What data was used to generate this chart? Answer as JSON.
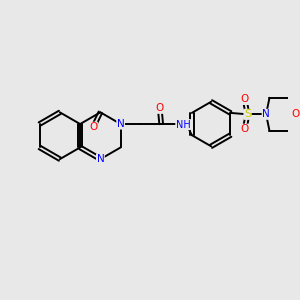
{
  "background_color": "#e8e8e8",
  "bond_color": "#000000",
  "atom_colors": {
    "N": "#0000ff",
    "O": "#ff0000",
    "S": "#cccc00",
    "C": "#000000",
    "H": "#555555"
  },
  "figsize": [
    3.0,
    3.0
  ],
  "dpi": 100,
  "xlim": [
    0,
    10
  ],
  "ylim": [
    0,
    10
  ]
}
